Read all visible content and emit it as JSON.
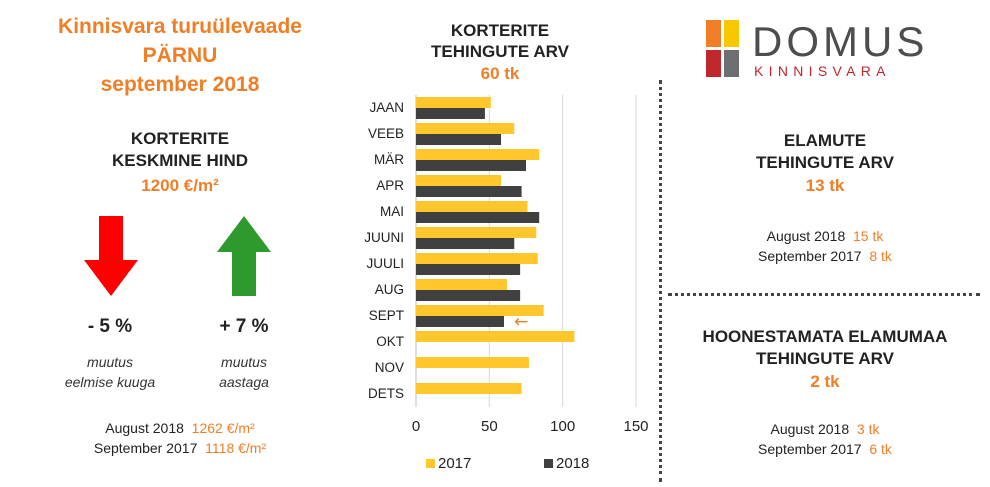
{
  "left": {
    "title_lines": [
      "Kinnisvara turuülevaade",
      "PÄRNU",
      "september 2018"
    ],
    "price_heading_lines": [
      "KORTERITE",
      "KESKMINE HIND"
    ],
    "price_value": "1200 €/m²",
    "monthly_change": {
      "value": "- 5 %",
      "note_lines": [
        "muutus",
        "eelmise kuuga"
      ],
      "direction": "down",
      "color": "#FF0000"
    },
    "yearly_change": {
      "value": "+ 7 %",
      "note_lines": [
        "muutus",
        "aastaga"
      ],
      "direction": "up",
      "color": "#2E9A2E"
    },
    "comparisons": [
      {
        "label": "August 2018",
        "value": "1262 €/m²"
      },
      {
        "label": "September 2017",
        "value": "1118 €/m²"
      }
    ]
  },
  "chart": {
    "title_lines": [
      "KORTERITE",
      "TEHINGUTE ARV"
    ],
    "total": "60 tk"
  },
  "logo": {
    "name": "DOMUS",
    "subtitle": "KINNISVARA",
    "colors": [
      "#F07E26",
      "#F7C700",
      "#C0272D",
      "#6D6E71"
    ]
  },
  "homes": {
    "heading_lines": [
      "ELAMUTE",
      "TEHINGUTE ARV"
    ],
    "total": "13 tk",
    "comparisons": [
      {
        "label": "August 2018",
        "value": "15 tk"
      },
      {
        "label": "September 2017",
        "value": "8 tk"
      }
    ]
  },
  "land": {
    "heading_lines": [
      "HOONESTAMATA ELAMUMAA",
      "TEHINGUTE ARV"
    ],
    "total": "2 tk",
    "comparisons": [
      {
        "label": "August 2018",
        "value": "3 tk"
      },
      {
        "label": "September 2017",
        "value": "6 tk"
      }
    ]
  },
  "chart_data": {
    "type": "bar",
    "orientation": "horizontal",
    "categories": [
      "JAAN",
      "VEEB",
      "MÄR",
      "APR",
      "MAI",
      "JUUNI",
      "JUULI",
      "AUG",
      "SEPT",
      "OKT",
      "NOV",
      "DETS"
    ],
    "series": [
      {
        "name": "2017",
        "color": "#FFC72C",
        "values": [
          51,
          67,
          84,
          58,
          76,
          82,
          83,
          62,
          87,
          108,
          77,
          72
        ]
      },
      {
        "name": "2018",
        "color": "#404040",
        "values": [
          47,
          58,
          75,
          72,
          84,
          67,
          71,
          71,
          60,
          null,
          null,
          null
        ]
      }
    ],
    "xlim": [
      0,
      150
    ],
    "xticks": [
      0,
      50,
      100,
      150
    ],
    "grid": true,
    "legend": "bottom",
    "annotation": {
      "text": "←",
      "category": "SEPT",
      "color": "#F07E26"
    }
  }
}
